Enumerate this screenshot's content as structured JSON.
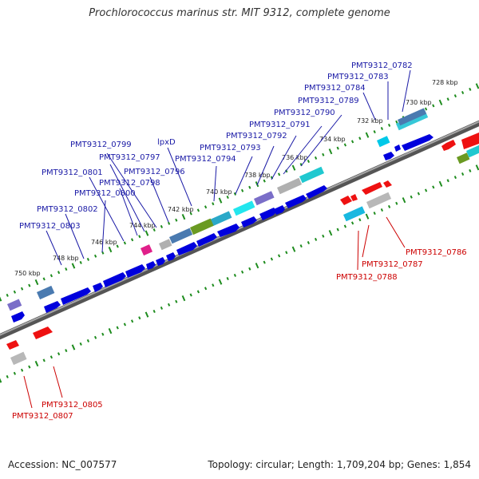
{
  "title": "Prochlorococcus marinus str. MIT 9312, complete genome",
  "footer": {
    "accession": "Accession: NC_007577",
    "topology": "Topology: circular; Length: 1,709,204 bp; Genes: 1,854"
  },
  "colors": {
    "backbone": "#7a7a7a",
    "tick": "#1e8c1e",
    "forward_gene": "#0000dd",
    "reverse_gene": "#ee1111",
    "forward_label": "#1a1aa6",
    "reverse_label": "#cc0000"
  },
  "scale_labels": [
    "728 kbp",
    "730 kbp",
    "732 kbp",
    "734 kbp",
    "736 kbp",
    "738 kbp",
    "740 kbp",
    "742 kbp",
    "744 kbp",
    "746 kbp",
    "748 kbp",
    "750 kbp"
  ],
  "forward_labels": [
    "PMT9312_0782",
    "PMT9312_0783",
    "PMT9312_0784",
    "PMT9312_0789",
    "PMT9312_0790",
    "PMT9312_0791",
    "PMT9312_0792",
    "PMT9312_0793",
    "PMT9312_0794",
    "lpxD",
    "PMT9312_0799",
    "PMT9312_0797",
    "PMT9312_0796",
    "PMT9312_0801",
    "PMT9312_0798",
    "PMT9312_0800",
    "PMT9312_0802",
    "PMT9312_0803"
  ],
  "reverse_labels": [
    "PMT9312_0786",
    "PMT9312_0787",
    "PMT9312_0788",
    "PMT9312_0805",
    "PMT9312_0807"
  ]
}
